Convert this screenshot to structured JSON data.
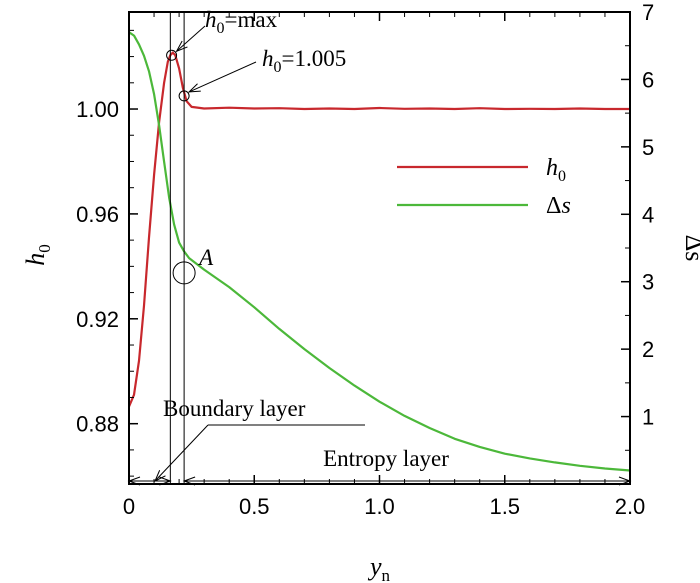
{
  "chart_data": {
    "type": "line",
    "xlabel": "y",
    "xlabel_sub": "n",
    "ylabel_left": "h",
    "ylabel_left_sub": "0",
    "ylabel_right": "Δs",
    "xlim": [
      0,
      2.0
    ],
    "ylim_left": [
      0.857,
      1.037
    ],
    "ylim_right": [
      0,
      7
    ],
    "x_ticks": [
      0,
      0.5,
      1.0,
      1.5,
      2.0
    ],
    "x_tick_labels": [
      "0",
      "0.5",
      "1.0",
      "1.5",
      "2.0"
    ],
    "y_left_ticks": [
      0.88,
      0.92,
      0.96,
      1.0
    ],
    "y_left_tick_labels": [
      "0.88",
      "0.92",
      "0.96",
      "1.00"
    ],
    "y_right_ticks": [
      1,
      2,
      3,
      4,
      5,
      6,
      7
    ],
    "y_right_tick_labels": [
      "1",
      "2",
      "3",
      "4",
      "5",
      "6",
      "7"
    ],
    "series": [
      {
        "name": "h0",
        "label_main": "h",
        "label_sub": "0",
        "axis": "left",
        "color": "#c8282d",
        "points": [
          [
            0.0,
            0.8865
          ],
          [
            0.02,
            0.891
          ],
          [
            0.04,
            0.904
          ],
          [
            0.06,
            0.925
          ],
          [
            0.08,
            0.951
          ],
          [
            0.1,
            0.975
          ],
          [
            0.12,
            0.995
          ],
          [
            0.14,
            1.01
          ],
          [
            0.155,
            1.018
          ],
          [
            0.165,
            1.0205
          ],
          [
            0.175,
            1.0215
          ],
          [
            0.185,
            1.0205
          ],
          [
            0.2,
            1.0155
          ],
          [
            0.215,
            1.008
          ],
          [
            0.23,
            1.003
          ],
          [
            0.25,
            1.0008
          ],
          [
            0.3,
            1.0002
          ],
          [
            0.4,
            1.0005
          ],
          [
            0.5,
            1.0002
          ],
          [
            0.6,
            1.0003
          ],
          [
            0.7,
            1.0
          ],
          [
            0.8,
            1.0002
          ],
          [
            0.9,
            1.0
          ],
          [
            1.0,
            1.0004
          ],
          [
            1.1,
            1.0001
          ],
          [
            1.2,
            1.0002
          ],
          [
            1.3,
            1.0
          ],
          [
            1.4,
            1.0003
          ],
          [
            1.5,
            1.0
          ],
          [
            1.6,
            1.0001
          ],
          [
            1.7,
            1.0
          ],
          [
            1.8,
            1.0002
          ],
          [
            1.9,
            1.0
          ],
          [
            2.0,
            1.0
          ]
        ]
      },
      {
        "name": "Δs",
        "label_main": "Δ",
        "label_sub": "s",
        "axis": "right",
        "color": "#4cb83a",
        "points": [
          [
            0.0,
            6.7
          ],
          [
            0.02,
            6.65
          ],
          [
            0.04,
            6.52
          ],
          [
            0.06,
            6.35
          ],
          [
            0.08,
            6.12
          ],
          [
            0.1,
            5.78
          ],
          [
            0.12,
            5.32
          ],
          [
            0.14,
            4.78
          ],
          [
            0.16,
            4.25
          ],
          [
            0.18,
            3.85
          ],
          [
            0.2,
            3.58
          ],
          [
            0.22,
            3.45
          ],
          [
            0.24,
            3.35
          ],
          [
            0.3,
            3.18
          ],
          [
            0.4,
            2.92
          ],
          [
            0.5,
            2.62
          ],
          [
            0.6,
            2.3
          ],
          [
            0.7,
            2.0
          ],
          [
            0.8,
            1.72
          ],
          [
            0.9,
            1.46
          ],
          [
            1.0,
            1.22
          ],
          [
            1.1,
            1.01
          ],
          [
            1.2,
            0.83
          ],
          [
            1.3,
            0.67
          ],
          [
            1.4,
            0.55
          ],
          [
            1.5,
            0.45
          ],
          [
            1.6,
            0.38
          ],
          [
            1.7,
            0.32
          ],
          [
            1.8,
            0.27
          ],
          [
            1.9,
            0.23
          ],
          [
            2.0,
            0.2
          ]
        ]
      }
    ],
    "vertical_lines_x": [
      0.165,
      0.22
    ],
    "annotations": {
      "h0max": {
        "main": "h",
        "sub": "0",
        "tail": "=max",
        "point": [
          0.17,
          1.0205
        ]
      },
      "h0val": {
        "main": "h",
        "sub": "0",
        "tail": "=1.005",
        "point": [
          0.22,
          1.005
        ]
      },
      "pointA": {
        "text": "A",
        "point": [
          0.22,
          0.9375
        ]
      },
      "boundary_layer": {
        "text": "Boundary layer",
        "range": [
          0.0,
          0.165
        ]
      },
      "entropy_layer": {
        "text": "Entropy layer",
        "range": [
          0.22,
          2.0
        ]
      }
    }
  }
}
